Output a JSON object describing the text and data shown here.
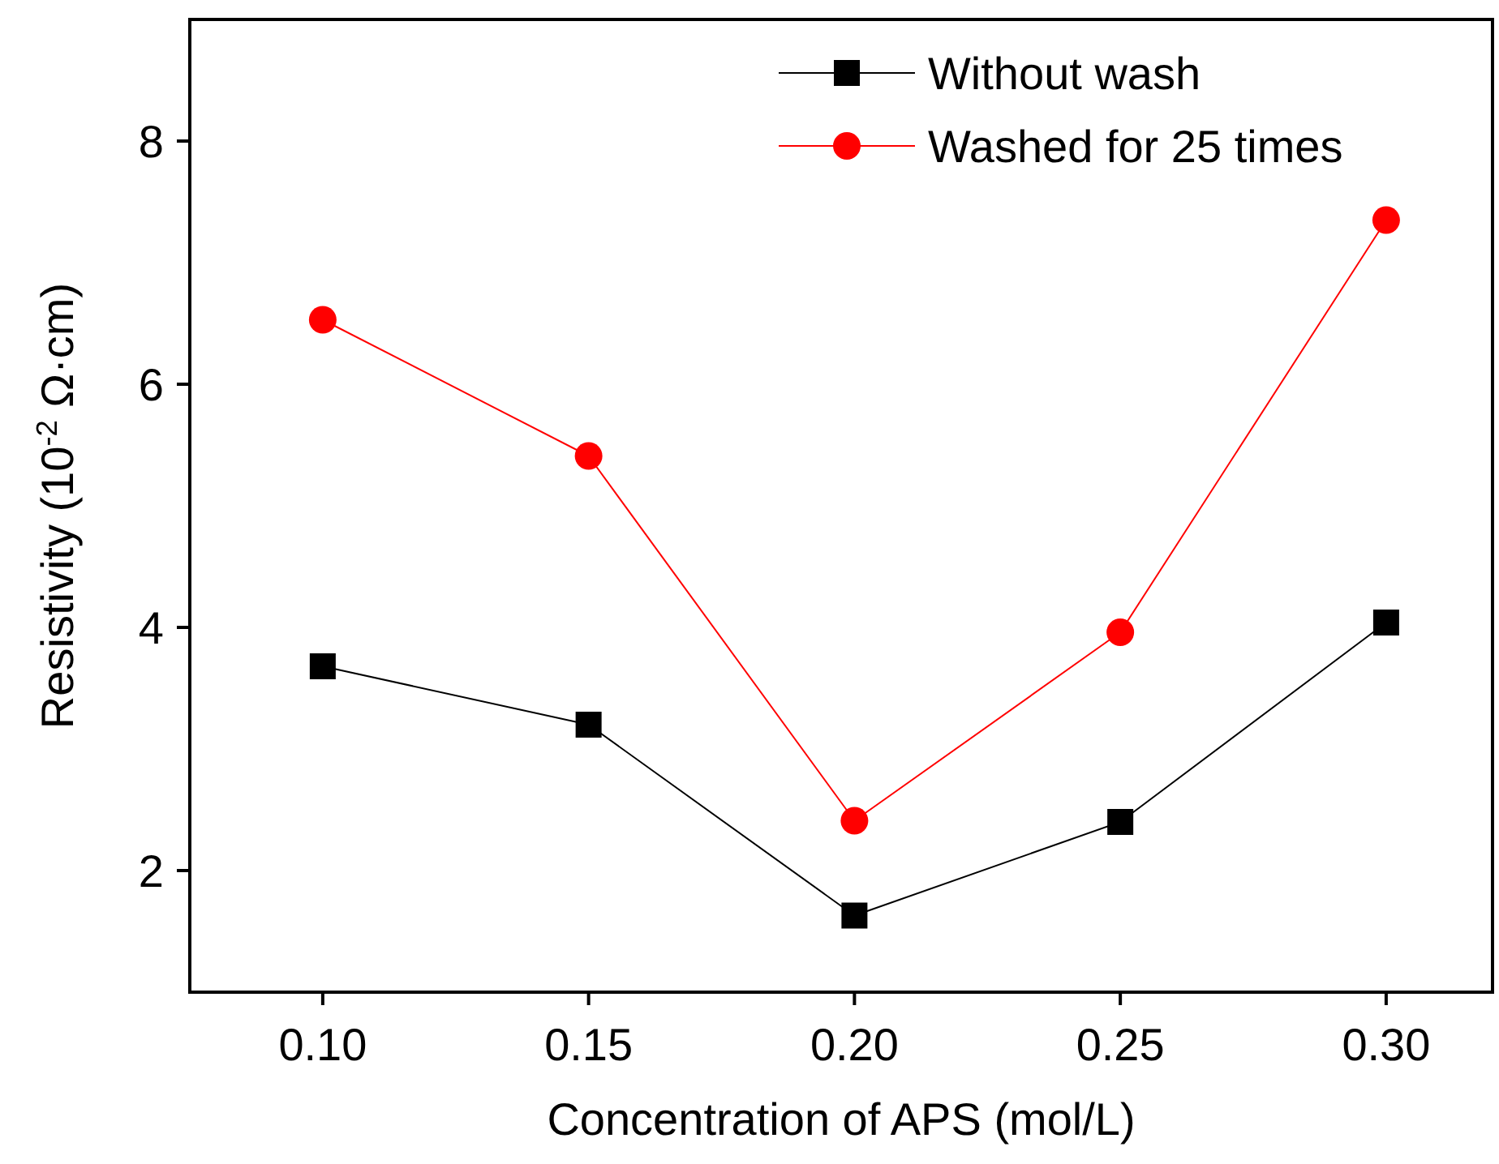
{
  "chart_data": {
    "type": "line",
    "xlabel": "Concentration of APS (mol/L)",
    "ylabel": "Resistivity (10$^{-2}$ Ω·cm)",
    "x": [
      0.1,
      0.15,
      0.2,
      0.25,
      0.3
    ],
    "series": [
      {
        "name": "Without wash",
        "color": "#000000",
        "marker": "square",
        "values": [
          3.68,
          3.2,
          1.63,
          2.4,
          4.04
        ]
      },
      {
        "name": "Washed for 25 times",
        "color": "#ff0000",
        "marker": "circle",
        "values": [
          6.53,
          5.41,
          2.41,
          3.96,
          7.35
        ]
      }
    ],
    "xlim": [
      0.075,
      0.32
    ],
    "xticks": [
      {
        "value": 0.1,
        "label": "0.10"
      },
      {
        "value": 0.15,
        "label": "0.15"
      },
      {
        "value": 0.2,
        "label": "0.20"
      },
      {
        "value": 0.25,
        "label": "0.25"
      },
      {
        "value": 0.3,
        "label": "0.30"
      }
    ],
    "ylim": [
      1,
      9
    ],
    "yticks": [
      2,
      4,
      6,
      8
    ],
    "grid": false,
    "legend": "top right",
    "line_style": "solid"
  }
}
